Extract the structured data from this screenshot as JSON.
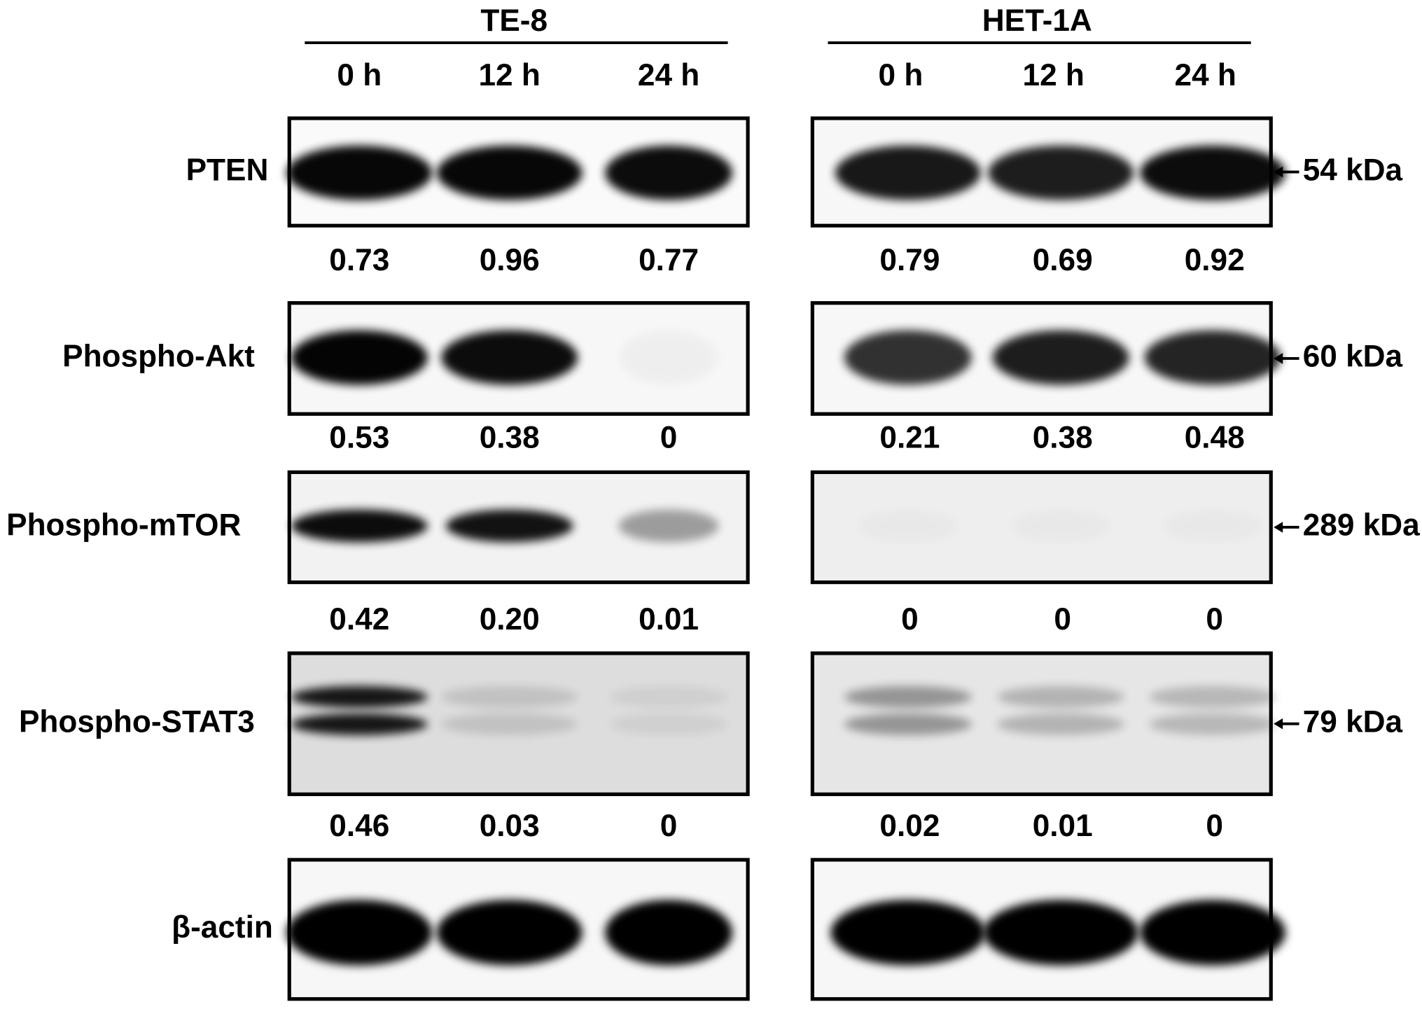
{
  "groups": [
    {
      "name": "TE-8",
      "lanes": [
        "0 h",
        "12 h",
        "24 h"
      ]
    },
    {
      "name": "HET-1A",
      "lanes": [
        "0 h",
        "12 h",
        "24 h"
      ]
    }
  ],
  "rows": [
    {
      "label": "PTEN",
      "marker": "54 kDa",
      "values": [
        [
          "0.73",
          "0.96",
          "0.77"
        ],
        [
          "0.79",
          "0.69",
          "0.92"
        ]
      ]
    },
    {
      "label": "Phospho-Akt",
      "marker": "60 kDa",
      "values": [
        [
          "0.53",
          "0.38",
          "0"
        ],
        [
          "0.21",
          "0.38",
          "0.48"
        ]
      ]
    },
    {
      "label": "Phospho-mTOR",
      "marker": "289 kDa",
      "values": [
        [
          "0.42",
          "0.20",
          "0.01"
        ],
        [
          "0",
          "0",
          "0"
        ]
      ]
    },
    {
      "label": "Phospho-STAT3",
      "marker": "79 kDa",
      "values": [
        [
          "0.46",
          "0.03",
          "0"
        ],
        [
          "0.02",
          "0.01",
          "0"
        ]
      ]
    },
    {
      "label": "β-actin"
    }
  ]
}
